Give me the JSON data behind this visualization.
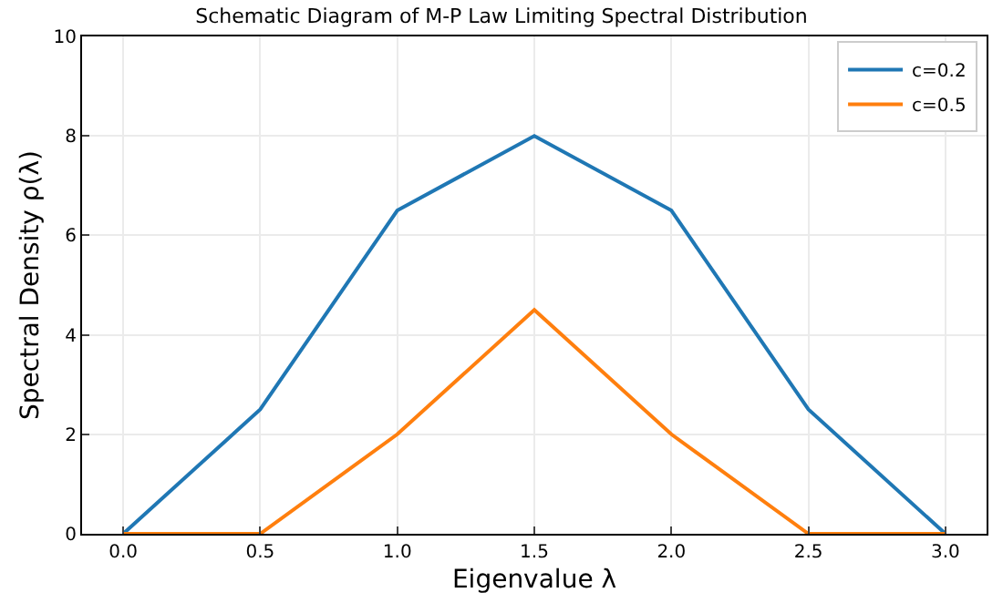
{
  "chart_data": {
    "type": "line",
    "title": "Schematic Diagram of M-P Law Limiting Spectral Distribution",
    "xlabel": "Eigenvalue λ",
    "ylabel": "Spectral Density ρ(λ)",
    "x": [
      0.0,
      0.5,
      1.0,
      1.5,
      2.0,
      2.5,
      3.0
    ],
    "series": [
      {
        "name": "c=0.2",
        "color": "#1f77b4",
        "values": [
          0,
          2.5,
          6.5,
          8,
          6.5,
          2.5,
          0
        ]
      },
      {
        "name": "c=0.5",
        "color": "#ff7f0e",
        "values": [
          0,
          0,
          2,
          4.5,
          2,
          0,
          0
        ]
      }
    ],
    "xlim": [
      -0.15,
      3.15
    ],
    "xticks": [
      {
        "value": 0,
        "label": "0.0"
      },
      0.5,
      {
        "value": 1,
        "label": "1.0"
      },
      1.5,
      {
        "value": 2,
        "label": "2.0"
      },
      2.5,
      {
        "value": 3,
        "label": "3.0"
      }
    ],
    "ylim": [
      0,
      10
    ],
    "yticks": [
      0,
      2,
      4,
      6,
      8,
      10
    ],
    "grid": true,
    "legend": "top right",
    "marker": "none",
    "line_style": "solid"
  }
}
